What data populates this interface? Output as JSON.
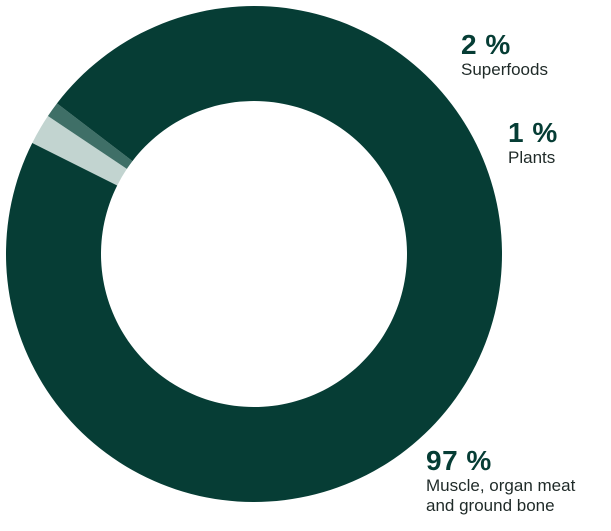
{
  "chart_data": {
    "type": "pie",
    "style": "donut",
    "segments": [
      {
        "label_lines": [
          "Muscle, organ meat",
          "and ground bone"
        ],
        "value": 97,
        "value_label": "97 %",
        "color": "#063d35"
      },
      {
        "label_lines": [
          "Plants"
        ],
        "value": 1,
        "value_label": "1 %",
        "color": "#3f6f67"
      },
      {
        "label_lines": [
          "Superfoods"
        ],
        "value": 2,
        "value_label": "2 %",
        "color": "#c2d4d0"
      }
    ]
  }
}
